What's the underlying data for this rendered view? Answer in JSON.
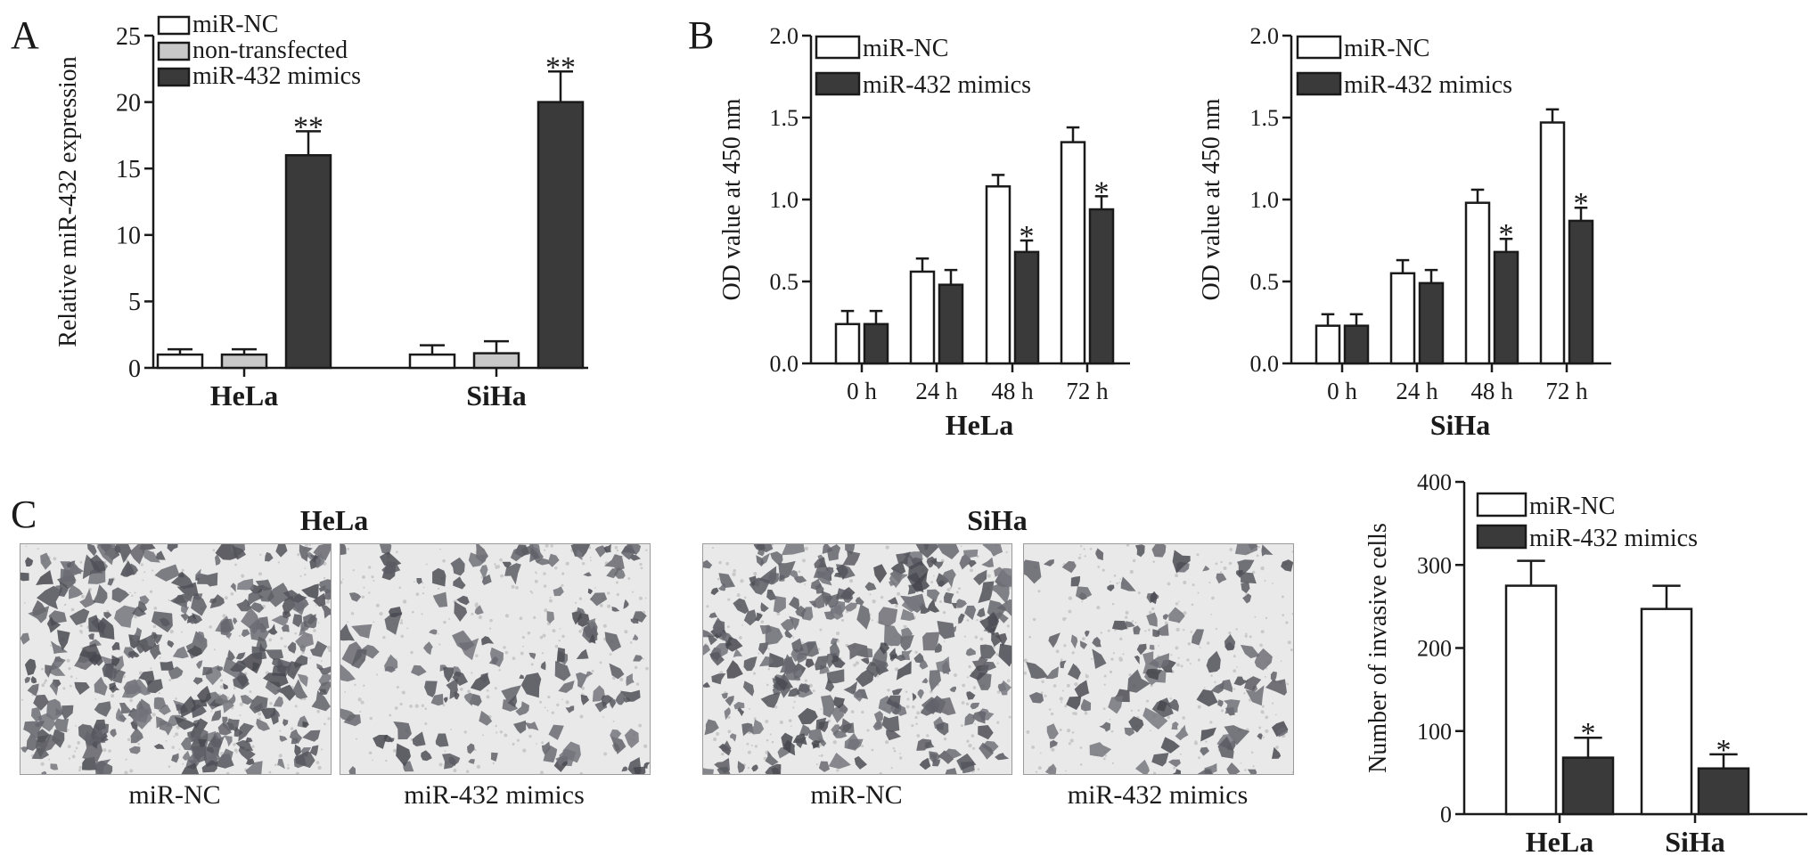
{
  "panels": {
    "A": "A",
    "B": "B",
    "C": "C"
  },
  "colors": {
    "nc": "#ffffff",
    "nontransfected": "#c8c8c8",
    "mimics": "#3a3a3a",
    "ink": "#1a1a1a"
  },
  "chart_data": [
    {
      "id": "A",
      "type": "bar",
      "categories": [
        "HeLa",
        "SiHa"
      ],
      "ylabel": "Relative miR-432 expression",
      "xlabel": "",
      "ylim": [
        0,
        25
      ],
      "yticks": [
        "0",
        "5",
        "10",
        "15",
        "20",
        "25"
      ],
      "legend_position": "top-left",
      "series": [
        {
          "name": "miR-NC",
          "color": "#ffffff",
          "values": [
            1.0,
            1.0
          ],
          "errors": [
            0.4,
            0.7
          ],
          "stars": [
            "",
            ""
          ]
        },
        {
          "name": "non-transfected",
          "color": "#c8c8c8",
          "values": [
            1.0,
            1.1
          ],
          "errors": [
            0.4,
            0.9
          ],
          "stars": [
            "",
            ""
          ]
        },
        {
          "name": "miR-432 mimics",
          "color": "#3a3a3a",
          "values": [
            16.0,
            20.0
          ],
          "errors": [
            1.8,
            2.3
          ],
          "stars": [
            "**",
            "**"
          ]
        }
      ]
    },
    {
      "id": "B1",
      "type": "bar",
      "categories": [
        "0 h",
        "24 h",
        "48 h",
        "72 h"
      ],
      "ylabel": "OD value at 450 nm",
      "xlabel": "HeLa",
      "ylim": [
        0,
        2.0
      ],
      "yticks": [
        "0.0",
        "0.5",
        "1.0",
        "1.5",
        "2.0"
      ],
      "legend_position": "top-left",
      "series": [
        {
          "name": "miR-NC",
          "color": "#ffffff",
          "values": [
            0.24,
            0.56,
            1.08,
            1.35
          ],
          "errors": [
            0.08,
            0.08,
            0.07,
            0.09
          ],
          "stars": [
            "",
            "",
            "",
            ""
          ]
        },
        {
          "name": "miR-432 mimics",
          "color": "#3a3a3a",
          "values": [
            0.24,
            0.48,
            0.68,
            0.94
          ],
          "errors": [
            0.08,
            0.09,
            0.07,
            0.08
          ],
          "stars": [
            "",
            "",
            "*",
            "*"
          ]
        }
      ]
    },
    {
      "id": "B2",
      "type": "bar",
      "categories": [
        "0 h",
        "24 h",
        "48 h",
        "72 h"
      ],
      "ylabel": "OD value at 450 nm",
      "xlabel": "SiHa",
      "ylim": [
        0,
        2.0
      ],
      "yticks": [
        "0.0",
        "0.5",
        "1.0",
        "1.5",
        "2.0"
      ],
      "legend_position": "top-left",
      "series": [
        {
          "name": "miR-NC",
          "color": "#ffffff",
          "values": [
            0.23,
            0.55,
            0.98,
            1.47
          ],
          "errors": [
            0.07,
            0.08,
            0.08,
            0.08
          ],
          "stars": [
            "",
            "",
            "",
            ""
          ]
        },
        {
          "name": "miR-432 mimics",
          "color": "#3a3a3a",
          "values": [
            0.23,
            0.49,
            0.68,
            0.87
          ],
          "errors": [
            0.07,
            0.08,
            0.08,
            0.08
          ],
          "stars": [
            "",
            "",
            "*",
            "*"
          ]
        }
      ]
    },
    {
      "id": "C",
      "type": "bar",
      "categories": [
        "HeLa",
        "SiHa"
      ],
      "ylabel": "Number of invasive cells",
      "xlabel": "",
      "ylim": [
        0,
        400
      ],
      "yticks": [
        "0",
        "100",
        "200",
        "300",
        "400"
      ],
      "legend_position": "top-left",
      "series": [
        {
          "name": "miR-NC",
          "color": "#ffffff",
          "values": [
            275,
            247
          ],
          "errors": [
            30,
            28
          ],
          "stars": [
            "",
            ""
          ]
        },
        {
          "name": "miR-432 mimics",
          "color": "#3a3a3a",
          "values": [
            68,
            55
          ],
          "errors": [
            24,
            17
          ],
          "stars": [
            "*",
            "*"
          ]
        }
      ]
    }
  ],
  "micrographs": {
    "hela_title": "HeLa",
    "siha_title": "SiHa",
    "images": [
      {
        "cell_line": "HeLa",
        "caption": "miR-NC",
        "density": 330
      },
      {
        "cell_line": "HeLa",
        "caption": "miR-432 mimics",
        "density": 150
      },
      {
        "cell_line": "SiHa",
        "caption": "miR-NC",
        "density": 300
      },
      {
        "cell_line": "SiHa",
        "caption": "miR-432 mimics",
        "density": 110
      }
    ]
  }
}
